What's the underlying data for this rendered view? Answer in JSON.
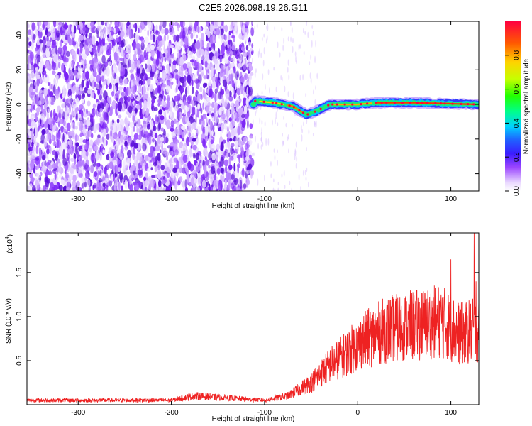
{
  "title": "C2E5.2026.098.19.26.G11",
  "chart_data": [
    {
      "type": "heatmap",
      "title": "C2E5.2026.098.19.26.G11",
      "xlabel": "Height of straight line (km)",
      "ylabel": "Frequency (Hz)",
      "xlim": [
        -355,
        130
      ],
      "ylim": [
        -50,
        48
      ],
      "xticks": [
        -300,
        -200,
        -100,
        0,
        100
      ],
      "yticks": [
        -40,
        -20,
        0,
        20,
        40
      ],
      "colorbar": {
        "label": "Normalized spectral amplitude",
        "range": [
          0,
          1
        ],
        "ticks": [
          0.0,
          0.2,
          0.4,
          0.6,
          0.8
        ],
        "tick_labels": [
          "0.0",
          "0.2",
          "0.4",
          "0.6",
          "0.8"
        ]
      },
      "features": {
        "noise_region_x": [
          -355,
          -113
        ],
        "signal_ridge": [
          {
            "x": -110,
            "y": 2
          },
          {
            "x": -90,
            "y": 1
          },
          {
            "x": -70,
            "y": -1
          },
          {
            "x": -55,
            "y": -6
          },
          {
            "x": -45,
            "y": -4
          },
          {
            "x": -30,
            "y": 0
          },
          {
            "x": 0,
            "y": 0
          },
          {
            "x": 20,
            "y": 1
          },
          {
            "x": 60,
            "y": 1
          },
          {
            "x": 130,
            "y": 0
          }
        ]
      }
    },
    {
      "type": "line",
      "xlabel": "Height of straight line (km)",
      "ylabel": "SNR (10 * v/v)",
      "y_multiplier": "(x10",
      "y_multiplier_exp": "4",
      "xlim": [
        -355,
        130
      ],
      "ylim": [
        0,
        1.95
      ],
      "xticks": [
        -300,
        -200,
        -100,
        0,
        100
      ],
      "yticks": [
        0.5,
        1.0,
        1.5
      ],
      "ytick_labels": [
        "0.5",
        "1.0",
        "1.5"
      ],
      "series": [
        {
          "name": "SNR",
          "color": "#ee2222",
          "envelope": [
            {
              "x": -355,
              "y": 0.05
            },
            {
              "x": -200,
              "y": 0.05
            },
            {
              "x": -175,
              "y": 0.1
            },
            {
              "x": -100,
              "y": 0.05
            },
            {
              "x": -75,
              "y": 0.1
            },
            {
              "x": -50,
              "y": 0.25
            },
            {
              "x": -30,
              "y": 0.45
            },
            {
              "x": -10,
              "y": 0.6
            },
            {
              "x": 10,
              "y": 0.75
            },
            {
              "x": 30,
              "y": 0.85
            },
            {
              "x": 60,
              "y": 0.9
            },
            {
              "x": 90,
              "y": 0.95
            },
            {
              "x": 110,
              "y": 0.8
            },
            {
              "x": 130,
              "y": 0.85
            }
          ],
          "peaks": [
            {
              "x": 100,
              "y": 1.65
            },
            {
              "x": 125,
              "y": 1.95
            },
            {
              "x": 127,
              "y": 1.4
            }
          ]
        }
      ]
    }
  ]
}
